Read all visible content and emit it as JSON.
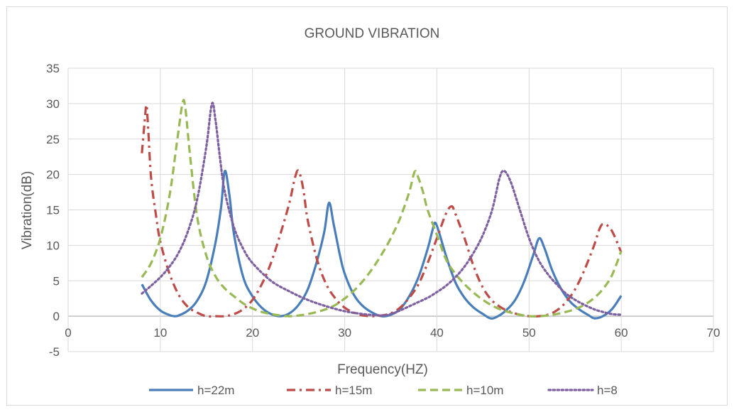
{
  "chart_data": {
    "type": "line",
    "title": "GROUND VIBRATION",
    "xlabel": "Frequency(HZ)",
    "ylabel": "Vibration(dB)",
    "xlim": [
      0,
      70
    ],
    "ylim": [
      -5,
      35
    ],
    "xticks": [
      0,
      10,
      20,
      30,
      40,
      50,
      60,
      70
    ],
    "yticks": [
      -5,
      0,
      5,
      10,
      15,
      20,
      25,
      30,
      35
    ],
    "grid": true,
    "legend": "bottom",
    "series": [
      {
        "name": "h=22m",
        "color": "#4a7ebb",
        "dash": "solid",
        "x": [
          8,
          9,
          10,
          11,
          11.5,
          12,
          13,
          14,
          15,
          16,
          16.6,
          17,
          17.5,
          18,
          19,
          20,
          21,
          22,
          23,
          24,
          25,
          26,
          27,
          27.8,
          28.3,
          28.8,
          29.5,
          30,
          31,
          32,
          33,
          34,
          35,
          36,
          37,
          38,
          39,
          39.5,
          39.8,
          40.2,
          41,
          42,
          43,
          44,
          45,
          45.8,
          46.5,
          47.5,
          48.5,
          49.5,
          50.5,
          51.1,
          51.7,
          52.5,
          53.5,
          54.5,
          55.5,
          56.5,
          57.1,
          58,
          59,
          60
        ],
        "y": [
          4.5,
          2.2,
          0.8,
          0.15,
          0.0,
          0.1,
          0.8,
          2.2,
          5.0,
          10.5,
          15.5,
          20.5,
          17.0,
          11.5,
          5.5,
          2.8,
          1.2,
          0.3,
          0.0,
          0.4,
          1.6,
          3.8,
          7.8,
          12.0,
          16.0,
          13.0,
          8.5,
          6.0,
          3.0,
          1.4,
          0.5,
          0.0,
          0.2,
          1.0,
          2.8,
          5.5,
          9.5,
          12.0,
          13.2,
          12.0,
          8.5,
          4.8,
          2.6,
          1.2,
          0.3,
          -0.3,
          -0.1,
          0.8,
          2.3,
          5.0,
          8.8,
          11.0,
          9.5,
          6.5,
          3.8,
          2.0,
          0.9,
          0.1,
          -0.3,
          0.0,
          1.0,
          2.9
        ]
      },
      {
        "name": "h=15m",
        "color": "#be4b48",
        "dash": "dashdot",
        "x": [
          8,
          8.3,
          8.5,
          8.7,
          9,
          9.5,
          10,
          11,
          12,
          13,
          14,
          15,
          16,
          17,
          18,
          19,
          20,
          21,
          22,
          23,
          24,
          24.6,
          25,
          25.5,
          26,
          27,
          28,
          29,
          30,
          31,
          32,
          33,
          34,
          35,
          36,
          37,
          38,
          39,
          40,
          41,
          41.6,
          42,
          43,
          44,
          45,
          46,
          47,
          48,
          49,
          50,
          51,
          52,
          53,
          54,
          55,
          56,
          57,
          57.7,
          58.2,
          59,
          60
        ],
        "y": [
          23.0,
          27.5,
          29.8,
          26.0,
          19.5,
          14.5,
          10.5,
          6.0,
          3.0,
          1.3,
          0.5,
          0.0,
          0.0,
          0.0,
          0.3,
          1.0,
          2.3,
          4.5,
          7.5,
          11.5,
          16.0,
          19.5,
          20.5,
          18.0,
          13.5,
          8.0,
          4.5,
          2.5,
          1.2,
          0.5,
          0.1,
          0.0,
          0.1,
          0.4,
          1.2,
          2.6,
          4.5,
          7.5,
          11.0,
          14.5,
          15.5,
          14.5,
          11.0,
          7.0,
          4.0,
          2.2,
          1.2,
          0.6,
          0.2,
          0.0,
          0.0,
          0.2,
          0.8,
          2.0,
          3.8,
          6.5,
          9.8,
          12.5,
          13.0,
          12.0,
          9.0
        ]
      },
      {
        "name": "h=10m",
        "color": "#98b954",
        "dash": "dashed",
        "x": [
          8,
          9,
          10,
          11,
          11.8,
          12.4,
          12.7,
          13.2,
          14,
          15,
          16,
          17,
          18,
          19,
          20,
          21,
          22,
          23,
          24,
          25,
          26,
          27,
          28,
          29,
          30,
          31,
          32,
          33,
          34,
          35,
          36,
          37,
          37.6,
          38,
          38.5,
          39,
          40,
          41,
          42,
          43,
          44,
          45,
          46,
          47,
          48,
          49,
          50,
          51,
          52,
          53,
          54,
          55,
          56,
          57,
          58,
          59,
          60
        ],
        "y": [
          5.5,
          7.5,
          11.0,
          17.0,
          24.5,
          30.0,
          29.5,
          23.0,
          14.0,
          8.5,
          5.6,
          3.9,
          2.8,
          1.8,
          1.1,
          0.6,
          0.3,
          0.1,
          0.0,
          0.1,
          0.3,
          0.6,
          1.0,
          1.6,
          2.5,
          3.6,
          5.0,
          6.7,
          8.7,
          11.0,
          13.8,
          17.5,
          20.4,
          19.5,
          17.5,
          15.0,
          11.5,
          8.0,
          6.0,
          4.5,
          3.3,
          2.3,
          1.5,
          0.9,
          0.5,
          0.2,
          0.0,
          0.0,
          0.1,
          0.3,
          0.6,
          1.0,
          1.6,
          2.5,
          3.8,
          5.8,
          9.2
        ]
      },
      {
        "name": "h=8",
        "color": "#7d60a0",
        "dash": "dotted",
        "x": [
          8,
          9,
          10,
          11,
          12,
          13,
          14,
          15,
          15.6,
          16,
          16.5,
          17,
          18,
          19,
          20,
          22,
          24,
          26,
          28,
          30,
          32,
          34,
          35,
          36,
          37,
          38,
          39,
          40,
          41,
          42,
          43,
          44,
          45,
          46,
          46.8,
          47.3,
          48,
          49,
          50,
          51,
          52,
          53,
          54,
          55,
          56,
          57,
          58,
          59,
          60
        ],
        "y": [
          3.2,
          4.3,
          5.5,
          7.0,
          9.0,
          12.0,
          16.5,
          24.0,
          30.0,
          27.5,
          22.0,
          17.5,
          12.5,
          9.5,
          7.5,
          5.0,
          3.5,
          2.3,
          1.4,
          0.7,
          0.3,
          0.1,
          0.3,
          0.8,
          1.4,
          2.0,
          2.6,
          3.4,
          4.3,
          5.5,
          7.0,
          9.0,
          11.5,
          15.0,
          19.5,
          20.5,
          19.0,
          15.0,
          11.0,
          8.0,
          6.0,
          4.5,
          3.2,
          2.3,
          1.6,
          1.0,
          0.6,
          0.3,
          0.2
        ]
      }
    ]
  }
}
